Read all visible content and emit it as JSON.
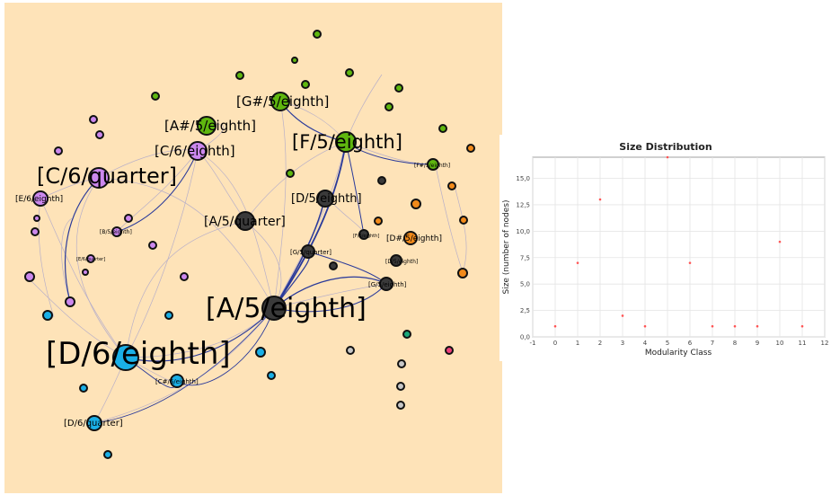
{
  "network": {
    "node_labels": [
      "[A/5/eighth]",
      "[D/6/eighth]",
      "[C/6/quarter]",
      "[F/5/eighth]",
      "[G#/5/eighth]",
      "[A#/5/eighth]",
      "[C/6/eighth]",
      "[A/5/quarter]",
      "[D/5/eighth]",
      "[E/6/eighth]",
      "[D#/5/eighth]",
      "[D/6/quarter]",
      "[C#/6/eighth]",
      "[G/5/quarter]",
      "[F#/5/eighth]",
      "[D/5/eighth]",
      "[G/5/eighth]",
      "[B/5/eighth]",
      "[E/6/quarter]",
      "[F/6/eighth]"
    ],
    "cluster_colors": {
      "green": "#5fb70f",
      "purple": "#cc88ee",
      "dark": "#3a3a3a",
      "blue": "#1aafe6",
      "orange": "#f28a1a",
      "gray": "#c7c7c7",
      "teal": "#1aa87a",
      "pink": "#f0407a"
    },
    "edge_color": "#2a3a9a"
  },
  "chart_data": {
    "type": "scatter",
    "title": "Size Distribution",
    "xlabel": "Modularity Class",
    "ylabel": "Size (number of nodes)",
    "xlim": [
      -1,
      12
    ],
    "ylim": [
      0,
      17
    ],
    "xticks": [
      "-1",
      "0",
      "1",
      "2",
      "3",
      "4",
      "5",
      "6",
      "7",
      "8",
      "9",
      "10",
      "11",
      "12"
    ],
    "yticks": [
      "0,0",
      "2,5",
      "5,0",
      "7,5",
      "10,0",
      "12,5",
      "15,0"
    ],
    "grid": true,
    "point_color": "#ff5555",
    "x": [
      0,
      1,
      2,
      3,
      4,
      5,
      6,
      7,
      8,
      9,
      10,
      11
    ],
    "y": [
      1,
      7,
      13,
      2,
      1,
      17,
      7,
      1,
      1,
      1,
      9,
      1
    ]
  }
}
